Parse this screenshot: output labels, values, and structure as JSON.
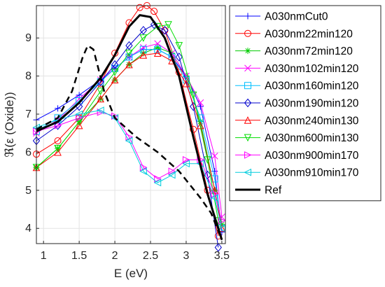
{
  "chart_data": {
    "type": "line",
    "title": "",
    "xlabel": "E (eV)",
    "ylabel": "ℜ(ε (Oxide))",
    "xlim": [
      0.9,
      3.55
    ],
    "ylim": [
      3.6,
      9.85
    ],
    "xticks": [
      1,
      1.5,
      2,
      2.5,
      3,
      3.5
    ],
    "yticks": [
      4,
      5,
      6,
      7,
      8,
      9
    ],
    "grid": true,
    "legend_position": "outside-right",
    "series": [
      {
        "name": "A030nmCut0",
        "color": "#0000ff",
        "marker": "plus",
        "x": [
          0.9,
          1.2,
          1.5,
          1.8,
          2.0,
          2.2,
          2.4,
          2.6,
          2.8,
          3.0,
          3.2,
          3.4,
          3.5
        ],
        "y": [
          6.85,
          7.15,
          7.5,
          7.9,
          8.2,
          8.5,
          8.7,
          8.7,
          8.5,
          8.0,
          7.2,
          5.5,
          3.9
        ]
      },
      {
        "name": "A030nm22min120",
        "color": "#ff0000",
        "marker": "circle",
        "x": [
          0.9,
          1.2,
          1.5,
          1.8,
          2.0,
          2.2,
          2.35,
          2.45,
          2.55,
          2.7,
          2.9,
          3.1,
          3.3,
          3.45
        ],
        "y": [
          5.95,
          6.3,
          6.9,
          7.8,
          8.6,
          9.4,
          9.8,
          9.85,
          9.7,
          9.2,
          8.1,
          6.6,
          5.0,
          3.8
        ]
      },
      {
        "name": "A030nm72min120",
        "color": "#00cc00",
        "marker": "asterisk",
        "x": [
          0.9,
          1.2,
          1.5,
          1.8,
          2.0,
          2.2,
          2.4,
          2.6,
          2.8,
          3.0,
          3.2,
          3.4,
          3.5
        ],
        "y": [
          5.6,
          6.1,
          6.8,
          7.4,
          7.9,
          8.3,
          8.6,
          8.75,
          8.6,
          8.0,
          6.8,
          5.0,
          4.1
        ]
      },
      {
        "name": "A030nm102min120",
        "color": "#ff00ff",
        "marker": "x",
        "x": [
          0.9,
          1.2,
          1.5,
          1.8,
          2.0,
          2.2,
          2.4,
          2.6,
          2.8,
          3.0,
          3.2,
          3.4,
          3.5
        ],
        "y": [
          6.5,
          6.85,
          7.4,
          7.9,
          8.2,
          8.5,
          8.75,
          8.85,
          8.6,
          8.0,
          7.3,
          5.9,
          4.3
        ]
      },
      {
        "name": "A030nm160min120",
        "color": "#00bfff",
        "marker": "square",
        "x": [
          0.9,
          1.2,
          1.5,
          1.8,
          2.0,
          2.2,
          2.4,
          2.6,
          2.8,
          3.0,
          3.2,
          3.4,
          3.5
        ],
        "y": [
          6.55,
          6.9,
          7.35,
          7.85,
          8.2,
          8.5,
          8.7,
          8.7,
          8.5,
          7.9,
          6.9,
          5.3,
          4.0
        ]
      },
      {
        "name": "A030nm190min120",
        "color": "#0000cd",
        "marker": "diamond",
        "x": [
          0.9,
          1.2,
          1.5,
          1.8,
          2.0,
          2.2,
          2.4,
          2.55,
          2.7,
          2.9,
          3.1,
          3.3,
          3.45
        ],
        "y": [
          6.3,
          6.7,
          7.2,
          7.85,
          8.3,
          8.8,
          9.2,
          9.35,
          9.2,
          8.5,
          7.2,
          5.4,
          3.5
        ]
      },
      {
        "name": "A030nm240min130",
        "color": "#ff0000",
        "marker": "triangle-up",
        "x": [
          0.9,
          1.2,
          1.5,
          1.8,
          2.0,
          2.2,
          2.4,
          2.6,
          2.8,
          3.0,
          3.2,
          3.4,
          3.5
        ],
        "y": [
          5.6,
          6.0,
          6.7,
          7.4,
          7.9,
          8.3,
          8.55,
          8.6,
          8.4,
          7.8,
          6.7,
          5.0,
          4.0
        ]
      },
      {
        "name": "A030nm600min130",
        "color": "#00dd00",
        "marker": "triangle-down",
        "x": [
          0.9,
          1.2,
          1.5,
          1.8,
          2.0,
          2.2,
          2.4,
          2.6,
          2.75,
          2.9,
          3.1,
          3.3,
          3.45
        ],
        "y": [
          5.6,
          6.1,
          6.8,
          7.6,
          8.1,
          8.6,
          9.0,
          9.3,
          9.35,
          8.8,
          7.5,
          5.8,
          4.2
        ]
      },
      {
        "name": "A030nm900min170",
        "color": "#ff00ff",
        "marker": "triangle-right",
        "x": [
          0.9,
          1.2,
          1.5,
          1.8,
          2.0,
          2.2,
          2.4,
          2.6,
          2.8,
          3.0,
          3.2,
          3.4,
          3.5
        ],
        "y": [
          6.55,
          6.7,
          6.9,
          7.05,
          6.95,
          6.4,
          5.6,
          5.3,
          5.5,
          5.8,
          5.8,
          4.9,
          4.2
        ]
      },
      {
        "name": "A030nm910min170",
        "color": "#00ccdd",
        "marker": "triangle-left",
        "x": [
          0.9,
          1.2,
          1.5,
          1.8,
          2.0,
          2.2,
          2.4,
          2.6,
          2.8,
          3.0,
          3.2,
          3.4,
          3.5
        ],
        "y": [
          6.65,
          6.85,
          7.0,
          7.1,
          6.9,
          6.3,
          5.5,
          5.2,
          5.4,
          5.7,
          5.7,
          4.8,
          4.0
        ]
      },
      {
        "name": "",
        "color": "#000000",
        "marker": "none",
        "style": "dashed",
        "x": [
          0.9,
          1.2,
          1.4,
          1.55,
          1.62,
          1.7,
          1.85,
          2.0,
          2.3,
          2.6,
          2.9,
          3.2,
          3.35,
          3.5
        ],
        "y": [
          6.6,
          6.9,
          7.6,
          8.5,
          8.8,
          8.7,
          7.6,
          6.9,
          6.4,
          6.0,
          5.5,
          4.8,
          4.4,
          3.7
        ]
      },
      {
        "name": "Ref",
        "color": "#000000",
        "marker": "none",
        "style": "solid",
        "width": 3,
        "x": [
          0.9,
          1.2,
          1.5,
          1.8,
          2.0,
          2.2,
          2.35,
          2.5,
          2.7,
          2.9,
          3.1,
          3.3,
          3.5
        ],
        "y": [
          6.55,
          6.8,
          7.3,
          7.95,
          8.55,
          9.3,
          9.6,
          9.55,
          9.0,
          8.0,
          6.4,
          4.9,
          3.7
        ]
      }
    ]
  }
}
